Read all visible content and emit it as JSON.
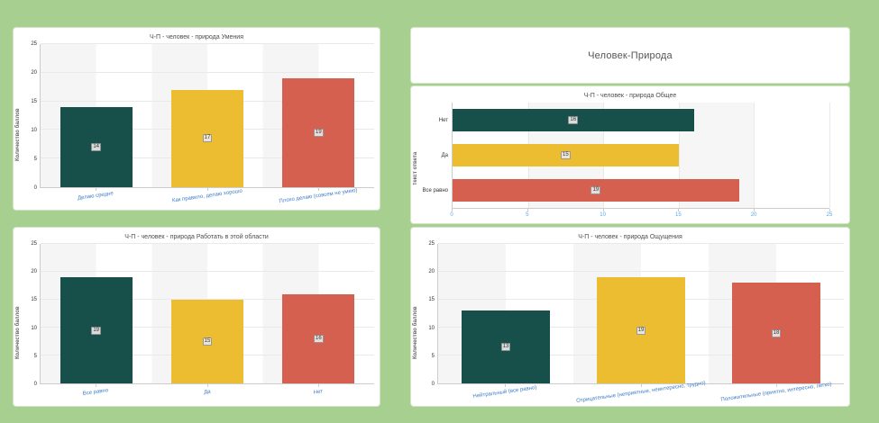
{
  "page": {
    "background_color": "#a6cf90"
  },
  "header": {
    "title": "Человек-Природа"
  },
  "colors": {
    "bar_green": "#17504a",
    "bar_yellow": "#edbd31",
    "bar_red": "#d5604f",
    "category_label_blue": "#3d7cc9",
    "axis_tick_blue": "#58a6e8",
    "axis_tick_dark": "#333333",
    "panel_background": "#ffffff"
  },
  "chart_data": [
    {
      "type": "bar",
      "title": "Ч-П - человек - природа Умения",
      "ylabel": "Количество баллов",
      "ylim": [
        0,
        25
      ],
      "yticks": [
        0,
        5,
        10,
        15,
        20,
        25
      ],
      "grid": true,
      "categories": [
        "Делаю средне",
        "Как правило, делаю хорошо",
        "Плохо делаю (совсем не умею)"
      ],
      "values": [
        14,
        17,
        19
      ],
      "bar_colors": [
        "#17504a",
        "#edbd31",
        "#d5604f"
      ]
    },
    {
      "type": "horizontal-bar",
      "title": "Ч-П - человек - природа Общее",
      "ylabel": "Текст ответа",
      "xlim": [
        0,
        25
      ],
      "xticks": [
        0,
        5,
        10,
        15,
        20,
        25
      ],
      "grid": true,
      "categories": [
        "Нет",
        "Да",
        "Все равно"
      ],
      "values": [
        16,
        15,
        19
      ],
      "bar_colors": [
        "#17504a",
        "#edbd31",
        "#d5604f"
      ]
    },
    {
      "type": "bar",
      "title": "Ч-П - человек - природа Работать в этой области",
      "ylabel": "Количество баллов",
      "ylim": [
        0,
        25
      ],
      "yticks": [
        0,
        5,
        10,
        15,
        20,
        25
      ],
      "grid": true,
      "categories": [
        "Все равно",
        "Да",
        "Нет"
      ],
      "values": [
        19,
        15,
        16
      ],
      "bar_colors": [
        "#17504a",
        "#edbd31",
        "#d5604f"
      ]
    },
    {
      "type": "bar",
      "title": "Ч-П - человек - природа Ощущения",
      "ylabel": "Количество баллов",
      "ylim": [
        0,
        25
      ],
      "yticks": [
        0,
        5,
        10,
        15,
        20,
        25
      ],
      "grid": true,
      "categories": [
        "Нейтральный (все равно)",
        "Отрицательные (неприятные, неинтересно, трудно)",
        "Положительные (приятно, интересно, легко)"
      ],
      "values": [
        13,
        19,
        18
      ],
      "bar_colors": [
        "#17504a",
        "#edbd31",
        "#d5604f"
      ]
    }
  ]
}
